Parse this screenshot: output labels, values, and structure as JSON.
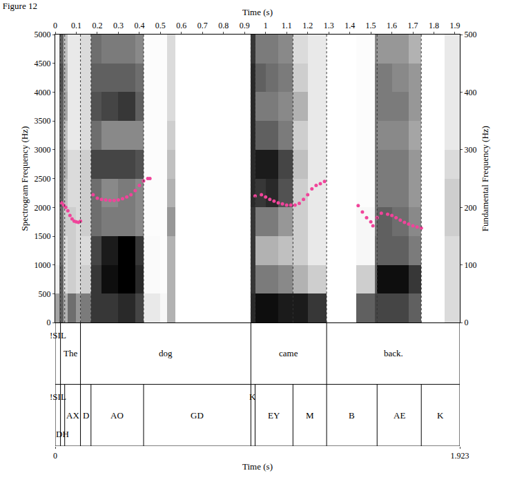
{
  "chart_data": {
    "type": "spectrogram",
    "title": "Figure 12",
    "x_label": "Time (s)",
    "y_label": "Spectrogram Frequency (Hz)",
    "y2_label": "Fundamental Frequency (Hz)",
    "xlim": [
      0,
      1.923
    ],
    "xticks": [
      0,
      0.1,
      0.2,
      0.3,
      0.4,
      0.5,
      0.6,
      0.7,
      0.8,
      0.9,
      1,
      1.1,
      1.2,
      1.3,
      1.4,
      1.5,
      1.6,
      1.7,
      1.8,
      1.9
    ],
    "ylim": [
      0,
      5000
    ],
    "yticks": [
      0,
      500,
      1000,
      1500,
      2000,
      2500,
      3000,
      3500,
      4000,
      4500,
      5000
    ],
    "y2lim": [
      0,
      500
    ],
    "y2ticks": [
      0,
      100,
      200,
      300,
      400,
      500
    ],
    "x2label": "Time (s)",
    "x2ticks": [
      0,
      1.923
    ],
    "grid": true,
    "spectrogram": {
      "time_edges": [
        0,
        0.02,
        0.04,
        0.06,
        0.1,
        0.12,
        0.17,
        0.22,
        0.3,
        0.38,
        0.42,
        0.5,
        0.53,
        0.57,
        0.93,
        0.95,
        1.0,
        1.06,
        1.13,
        1.2,
        1.29,
        1.4,
        1.43,
        1.52,
        1.53,
        1.6,
        1.68,
        1.74,
        1.85,
        1.923
      ],
      "frequency_edges": [
        0,
        500,
        1000,
        1500,
        2000,
        2500,
        3000,
        3500,
        4000,
        4500,
        5000
      ],
      "cells": [
        [
          0.35,
          0.6,
          0.3,
          0.55,
          0.4,
          0.5,
          0.75,
          0.75,
          0.8,
          0.7,
          0.1,
          0.05,
          0.3,
          0.02,
          0.8,
          0.9,
          0.9,
          0.85,
          0.85,
          0.75,
          0.02,
          0.02,
          0.6,
          0.7,
          0.7,
          0.7,
          0.6,
          0.02,
          0.15
        ],
        [
          0.08,
          0.6,
          0.15,
          0.2,
          0.15,
          0.2,
          0.75,
          0.9,
          0.95,
          0.8,
          0.04,
          0.03,
          0.3,
          0.02,
          0.75,
          0.5,
          0.5,
          0.45,
          0.3,
          0.2,
          0.02,
          0.02,
          0.2,
          0.6,
          0.9,
          0.9,
          0.75,
          0.02,
          0.15
        ],
        [
          0.05,
          0.55,
          0.15,
          0.2,
          0.15,
          0.15,
          0.7,
          0.85,
          0.95,
          0.75,
          0.04,
          0.03,
          0.3,
          0.02,
          0.75,
          0.3,
          0.3,
          0.25,
          0.2,
          0.1,
          0.02,
          0.02,
          0.05,
          0.55,
          0.6,
          0.6,
          0.5,
          0.02,
          0.15
        ],
        [
          0.05,
          0.55,
          0.2,
          0.2,
          0.15,
          0.2,
          0.55,
          0.5,
          0.5,
          0.45,
          0.03,
          0.03,
          0.4,
          0.02,
          0.75,
          0.5,
          0.5,
          0.4,
          0.2,
          0.1,
          0.02,
          0.02,
          0.05,
          0.5,
          0.6,
          0.55,
          0.45,
          0.02,
          0.2
        ],
        [
          0.05,
          0.6,
          0.25,
          0.15,
          0.15,
          0.2,
          0.55,
          0.45,
          0.5,
          0.45,
          0.03,
          0.03,
          0.3,
          0.02,
          0.8,
          0.75,
          0.8,
          0.65,
          0.2,
          0.1,
          0.02,
          0.02,
          0.03,
          0.5,
          0.5,
          0.5,
          0.4,
          0.02,
          0.2
        ],
        [
          0.05,
          0.6,
          0.3,
          0.15,
          0.15,
          0.2,
          0.7,
          0.7,
          0.7,
          0.65,
          0.03,
          0.03,
          0.25,
          0.02,
          0.8,
          0.85,
          0.85,
          0.7,
          0.25,
          0.1,
          0.02,
          0.02,
          0.03,
          0.5,
          0.5,
          0.5,
          0.4,
          0.02,
          0.15
        ],
        [
          0.05,
          0.6,
          0.25,
          0.1,
          0.1,
          0.15,
          0.55,
          0.45,
          0.45,
          0.45,
          0.03,
          0.03,
          0.2,
          0.02,
          0.8,
          0.6,
          0.6,
          0.5,
          0.2,
          0.1,
          0.02,
          0.02,
          0.03,
          0.5,
          0.45,
          0.45,
          0.35,
          0.02,
          0.1
        ],
        [
          0.05,
          0.6,
          0.35,
          0.1,
          0.1,
          0.15,
          0.65,
          0.7,
          0.75,
          0.6,
          0.03,
          0.03,
          0.15,
          0.02,
          0.8,
          0.5,
          0.5,
          0.45,
          0.3,
          0.1,
          0.02,
          0.02,
          0.03,
          0.5,
          0.5,
          0.5,
          0.4,
          0.02,
          0.1
        ],
        [
          0.05,
          0.65,
          0.3,
          0.1,
          0.1,
          0.15,
          0.6,
          0.6,
          0.6,
          0.55,
          0.03,
          0.03,
          0.15,
          0.02,
          0.8,
          0.6,
          0.55,
          0.5,
          0.2,
          0.1,
          0.02,
          0.02,
          0.03,
          0.5,
          0.5,
          0.45,
          0.4,
          0.02,
          0.1
        ],
        [
          0.05,
          0.6,
          0.25,
          0.1,
          0.1,
          0.15,
          0.55,
          0.5,
          0.5,
          0.45,
          0.03,
          0.03,
          0.15,
          0.02,
          0.75,
          0.5,
          0.5,
          0.45,
          0.15,
          0.1,
          0.02,
          0.02,
          0.03,
          0.45,
          0.4,
          0.4,
          0.3,
          0.02,
          0.1
        ]
      ]
    },
    "series": [
      {
        "axis": "y2",
        "color": "#f0449a",
        "marker": "circle",
        "x": [
          0.03,
          0.04,
          0.05,
          0.06,
          0.07,
          0.08,
          0.09,
          0.1,
          0.11,
          0.12,
          0.15,
          0.18,
          0.2,
          0.22,
          0.24,
          0.26,
          0.28,
          0.3,
          0.32,
          0.34,
          0.36,
          0.38,
          0.4,
          0.42,
          0.44,
          0.45,
          0.7,
          0.95,
          0.98,
          1.0,
          1.02,
          1.04,
          1.06,
          1.08,
          1.1,
          1.12,
          1.14,
          1.16,
          1.18,
          1.2,
          1.22,
          1.24,
          1.26,
          1.28,
          1.36,
          1.44,
          1.46,
          1.48,
          1.5,
          1.51,
          1.52,
          1.53,
          1.55,
          1.58,
          1.6,
          1.62,
          1.64,
          1.66,
          1.68,
          1.7,
          1.72,
          1.74
        ],
        "values": [
          208,
          204,
          200,
          194,
          186,
          180,
          176,
          175,
          174,
          176,
          null,
          222,
          216,
          214,
          213,
          212,
          212,
          213,
          215,
          218,
          222,
          229,
          238,
          246,
          250,
          250,
          null,
          220,
          222,
          218,
          214,
          211,
          208,
          206,
          204,
          204,
          204,
          207,
          214,
          222,
          232,
          238,
          241,
          245,
          null,
          203,
          192,
          182,
          175,
          168,
          null,
          182,
          190,
          188,
          186,
          182,
          178,
          174,
          171,
          168,
          166,
          164
        ]
      }
    ],
    "tiers": [
      {
        "intervals": [
          {
            "start": 0,
            "end": 0.025,
            "label": "!SIL"
          },
          {
            "start": 0.025,
            "end": 0.12,
            "label": "The"
          },
          {
            "start": 0.12,
            "end": 0.93,
            "label": "dog"
          },
          {
            "start": 0.93,
            "end": 1.29,
            "label": "came"
          },
          {
            "start": 1.29,
            "end": 1.923,
            "label": "back."
          }
        ]
      },
      {
        "intervals": [
          {
            "start": 0,
            "end": 0.025,
            "label": "!SIL"
          },
          {
            "start": 0.025,
            "end": 0.045,
            "label": "DH"
          },
          {
            "start": 0.045,
            "end": 0.12,
            "label": "AX"
          },
          {
            "start": 0.12,
            "end": 0.17,
            "label": "D"
          },
          {
            "start": 0.17,
            "end": 0.42,
            "label": "AO"
          },
          {
            "start": 0.42,
            "end": 0.93,
            "label": "GD"
          },
          {
            "start": 0.93,
            "end": 0.95,
            "label": "K"
          },
          {
            "start": 0.95,
            "end": 1.13,
            "label": "EY"
          },
          {
            "start": 1.13,
            "end": 1.29,
            "label": "M"
          },
          {
            "start": 1.29,
            "end": 1.53,
            "label": "B"
          },
          {
            "start": 1.53,
            "end": 1.74,
            "label": "AE"
          },
          {
            "start": 1.74,
            "end": 1.923,
            "label": "K"
          }
        ]
      }
    ]
  }
}
